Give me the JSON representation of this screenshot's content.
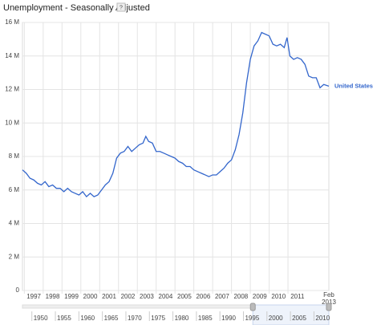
{
  "chart_data": {
    "type": "line",
    "title": "Unemployment - Seasonally Adjusted",
    "help_icon": "?",
    "x_end_label": [
      "Feb",
      "2013"
    ],
    "xlim": [
      1996.9,
      2013.17
    ],
    "xticks": [
      1997,
      1998,
      1999,
      2000,
      2001,
      2002,
      2003,
      2004,
      2005,
      2006,
      2007,
      2008,
      2009,
      2010,
      2011
    ],
    "ylim": [
      0,
      16
    ],
    "yticks": [
      {
        "value": 0,
        "label": "0"
      },
      {
        "value": 2,
        "label": "2 M"
      },
      {
        "value": 4,
        "label": "4 M"
      },
      {
        "value": 6,
        "label": "6 M"
      },
      {
        "value": 8,
        "label": "8 M"
      },
      {
        "value": 10,
        "label": "10 M"
      },
      {
        "value": 12,
        "label": "12 M"
      },
      {
        "value": 14,
        "label": "14 M"
      },
      {
        "value": 16,
        "label": "16 M"
      }
    ],
    "grid": true,
    "series": [
      {
        "name": "United States",
        "color": "#3366cc",
        "x": [
          1996.9,
          1997.1,
          1997.3,
          1997.5,
          1997.7,
          1997.9,
          1998.1,
          1998.3,
          1998.5,
          1998.7,
          1998.9,
          1999.1,
          1999.3,
          1999.5,
          1999.7,
          1999.9,
          2000.1,
          2000.3,
          2000.5,
          2000.7,
          2000.9,
          2001.1,
          2001.3,
          2001.5,
          2001.7,
          2001.9,
          2002.1,
          2002.3,
          2002.5,
          2002.7,
          2002.9,
          2003.1,
          2003.3,
          2003.45,
          2003.6,
          2003.8,
          2004.0,
          2004.2,
          2004.4,
          2004.6,
          2004.8,
          2005.0,
          2005.2,
          2005.4,
          2005.6,
          2005.8,
          2006.0,
          2006.2,
          2006.4,
          2006.6,
          2006.8,
          2007.0,
          2007.2,
          2007.4,
          2007.6,
          2007.8,
          2008.0,
          2008.2,
          2008.4,
          2008.6,
          2008.8,
          2009.0,
          2009.2,
          2009.4,
          2009.6,
          2009.8,
          2010.0,
          2010.2,
          2010.4,
          2010.6,
          2010.8,
          2010.95,
          2011.1,
          2011.3,
          2011.5,
          2011.7,
          2011.9,
          2012.1,
          2012.3,
          2012.5,
          2012.7,
          2012.9,
          2013.17
        ],
        "values": [
          7.2,
          7.0,
          6.7,
          6.6,
          6.4,
          6.3,
          6.5,
          6.2,
          6.3,
          6.1,
          6.1,
          5.9,
          6.1,
          5.9,
          5.8,
          5.7,
          5.9,
          5.6,
          5.8,
          5.6,
          5.7,
          6.0,
          6.3,
          6.5,
          7.0,
          7.9,
          8.2,
          8.3,
          8.6,
          8.3,
          8.5,
          8.7,
          8.8,
          9.2,
          8.9,
          8.8,
          8.3,
          8.3,
          8.2,
          8.1,
          8.0,
          7.9,
          7.7,
          7.6,
          7.4,
          7.4,
          7.2,
          7.1,
          7.0,
          6.9,
          6.8,
          6.9,
          6.9,
          7.1,
          7.3,
          7.6,
          7.8,
          8.4,
          9.3,
          10.6,
          12.4,
          13.8,
          14.6,
          14.9,
          15.4,
          15.3,
          15.2,
          14.7,
          14.6,
          14.7,
          14.5,
          15.1,
          14.0,
          13.8,
          13.9,
          13.8,
          13.5,
          12.8,
          12.7,
          12.7,
          12.1,
          12.3,
          12.2
        ]
      }
    ],
    "navigator": {
      "xlim": [
        1948,
        2013.17
      ],
      "ticks": [
        1950,
        1955,
        1960,
        1965,
        1970,
        1975,
        1980,
        1985,
        1990,
        1995,
        2000,
        2005,
        2010
      ],
      "window": [
        1997,
        2013.17
      ]
    }
  }
}
